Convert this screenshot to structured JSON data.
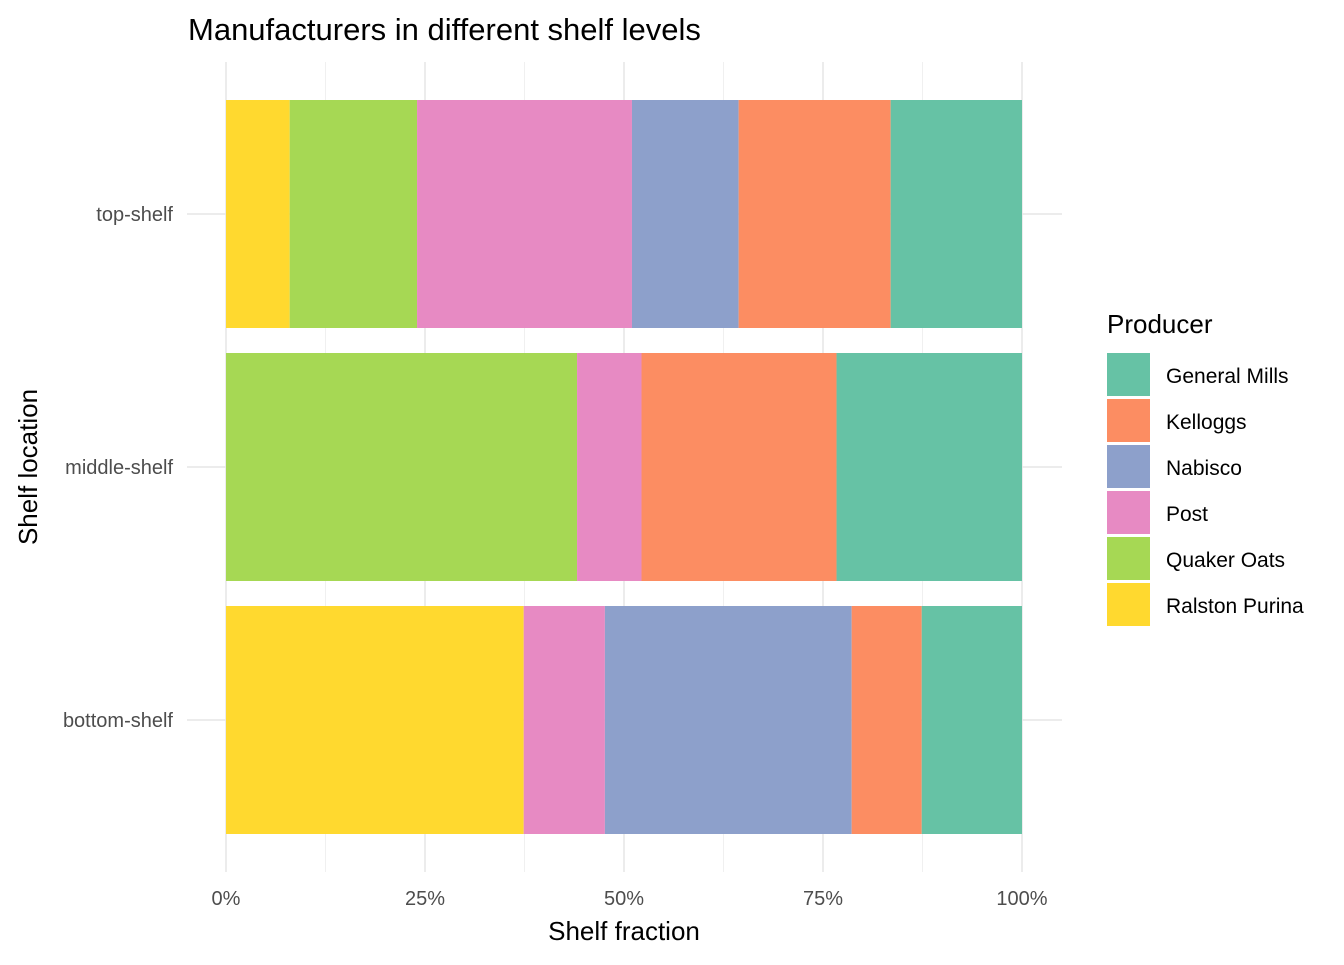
{
  "chart_data": {
    "type": "bar",
    "orientation": "horizontal",
    "stacked": "fill",
    "title": "Manufacturers in different shelf levels",
    "xlabel": "Shelf fraction",
    "ylabel": "Shelf location",
    "xlim": [
      0,
      1
    ],
    "x_ticks": [
      "0%",
      "25%",
      "50%",
      "75%",
      "100%"
    ],
    "categories": [
      "top-shelf",
      "middle-shelf",
      "bottom-shelf"
    ],
    "grid": true,
    "legend": {
      "title": "Producer",
      "position": "right"
    },
    "series": [
      {
        "name": "General Mills",
        "color": "#66C2A5",
        "values": [
          0.165,
          0.233,
          0.126
        ]
      },
      {
        "name": "Kelloggs",
        "color": "#FC8D62",
        "values": [
          0.191,
          0.245,
          0.088
        ]
      },
      {
        "name": "Nabisco",
        "color": "#8DA0CB",
        "values": [
          0.134,
          0.0,
          0.31
        ]
      },
      {
        "name": "Post",
        "color": "#E78AC3",
        "values": [
          0.27,
          0.081,
          0.102
        ]
      },
      {
        "name": "Quaker Oats",
        "color": "#A6D854",
        "values": [
          0.16,
          0.441,
          0.0
        ]
      },
      {
        "name": "Ralston Purina",
        "color": "#FFD92F",
        "values": [
          0.08,
          0.0,
          0.374
        ]
      }
    ]
  }
}
